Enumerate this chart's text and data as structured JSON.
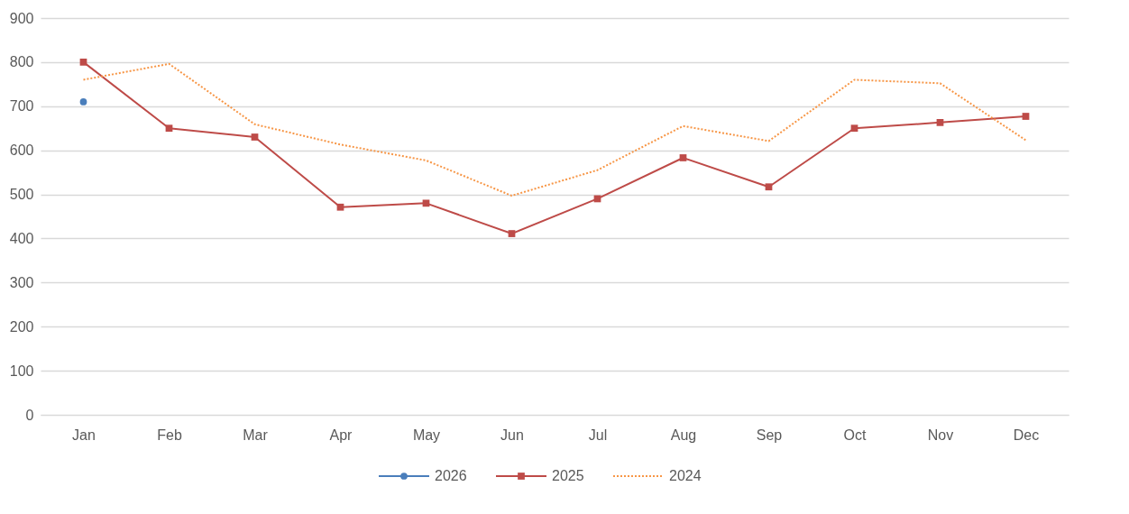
{
  "chart_data": {
    "type": "line",
    "categories": [
      "Jan",
      "Feb",
      "Mar",
      "Apr",
      "May",
      "Jun",
      "Jul",
      "Aug",
      "Sep",
      "Oct",
      "Nov",
      "Dec"
    ],
    "series": [
      {
        "name": "2026",
        "color": "#4a7ebb",
        "marker": "circle",
        "line_style": "solid",
        "values": [
          710,
          null,
          null,
          null,
          null,
          null,
          null,
          null,
          null,
          null,
          null,
          null
        ]
      },
      {
        "name": "2025",
        "color": "#be4b48",
        "marker": "square",
        "line_style": "solid",
        "values": [
          800,
          650,
          630,
          471,
          480,
          411,
          490,
          583,
          517,
          650,
          663,
          677
        ]
      },
      {
        "name": "2024",
        "color": "#f79646",
        "marker": "none",
        "line_style": "dotted",
        "values": [
          760,
          796,
          659,
          613,
          577,
          497,
          555,
          655,
          621,
          760,
          752,
          623
        ]
      }
    ],
    "ylim": [
      0,
      900
    ],
    "yticks": [
      0,
      100,
      200,
      300,
      400,
      500,
      600,
      700,
      800,
      900
    ],
    "grid": "y",
    "legend": "bottom"
  }
}
